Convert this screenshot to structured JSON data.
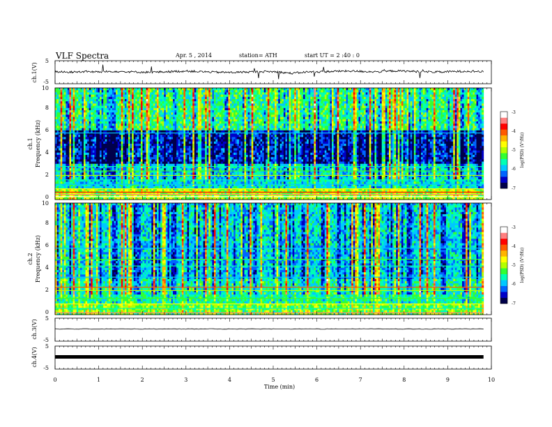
{
  "header": {
    "title": "VLF  Spectra",
    "date": "Apr. 5  , 2014",
    "station": "station= ATH",
    "start_ut": "start  UT  =   2  :40 : 0"
  },
  "chart_data": [
    {
      "type": "line",
      "panel": "ch1-waveform",
      "ylabel": "ch.1(V)",
      "ylim": [
        -5,
        5
      ],
      "yticks": [
        "5",
        "-5"
      ],
      "xlim": [
        0,
        10
      ],
      "x_end": 9.82,
      "series": [
        {
          "values_approx": [
            0.2,
            0.0,
            0.3,
            0.1,
            0.4,
            0.2,
            0.0,
            0.1,
            0.3,
            0.5,
            0.2,
            0.0,
            -0.1,
            0.1,
            0.3,
            0.2,
            -0.5,
            0.1,
            0.2,
            0.4,
            0.5,
            0.3,
            0.2,
            0.6,
            0.4,
            0.2,
            0.1,
            0.3,
            0.5,
            0.2
          ]
        }
      ],
      "color": "#000000"
    },
    {
      "type": "heatmap",
      "panel": "ch1-spectrogram",
      "ylabel": "ch.1\nFrequency  (kHz)",
      "ylim": [
        0,
        10
      ],
      "yticks": [
        "0",
        "2",
        "4",
        "6",
        "8",
        "10"
      ],
      "xlim": [
        0,
        10
      ],
      "x_end": 9.82,
      "colorbar": {
        "label": "log(PSD) (V²/Hz)",
        "range": [
          -7,
          -3
        ],
        "ticks": [
          "-3",
          "-4",
          "-5",
          "-6",
          "-7"
        ]
      }
    },
    {
      "type": "heatmap",
      "panel": "ch2-spectrogram",
      "ylabel": "ch.2\nFrequency  (kHz)",
      "ylim": [
        0,
        10
      ],
      "yticks": [
        "0",
        "2",
        "4",
        "6",
        "8",
        "10"
      ],
      "xlim": [
        0,
        10
      ],
      "x_end": 9.82,
      "colorbar": {
        "label": "log(PSD) (V²/Hz)",
        "range": [
          -7,
          -3
        ],
        "ticks": [
          "-3",
          "-4",
          "-5",
          "-6",
          "-7"
        ]
      }
    },
    {
      "type": "line",
      "panel": "ch3-waveform",
      "ylabel": "ch.3(V)",
      "ylim": [
        -5,
        5
      ],
      "yticks": [
        "5",
        "-5"
      ],
      "xlim": [
        0,
        10
      ],
      "x_end": 9.82,
      "series": [
        {
          "values_approx": [
            0,
            0
          ]
        }
      ]
    },
    {
      "type": "line",
      "panel": "ch4-waveform",
      "ylabel": "ch.4(V)",
      "ylim": [
        -5,
        5
      ],
      "yticks": [
        "5",
        "-5"
      ],
      "xlim": [
        0,
        10
      ],
      "x_end": 9.82,
      "series": [
        {
          "values_approx": [
            0,
            0
          ]
        }
      ]
    }
  ],
  "xaxis": {
    "label": "Time  (min)",
    "ticks": [
      "0",
      "1",
      "2",
      "3",
      "4",
      "5",
      "6",
      "7",
      "8",
      "9",
      "10"
    ]
  },
  "colormap": [
    "#00004a",
    "#0000c8",
    "#0064ff",
    "#00c8ff",
    "#00ffb4",
    "#32ff32",
    "#b4ff00",
    "#ffff00",
    "#ffb400",
    "#ff5a00",
    "#ff0000",
    "#ff8080",
    "#ffffff"
  ]
}
